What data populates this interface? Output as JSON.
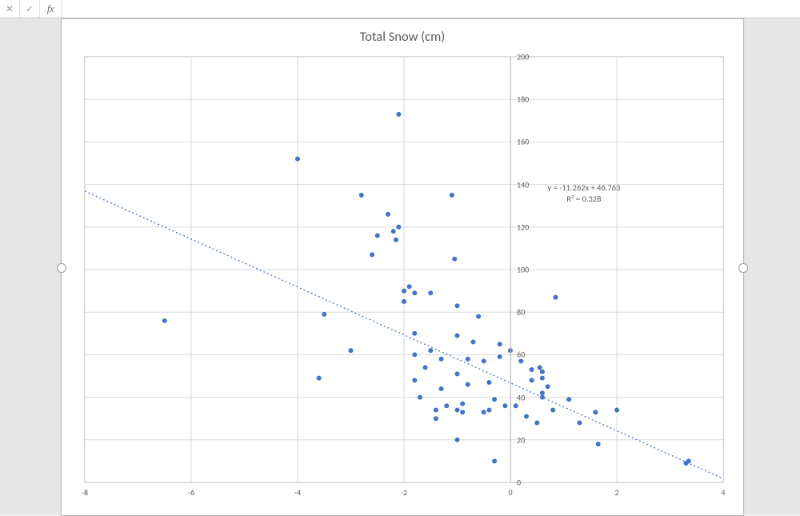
{
  "formula_bar": {
    "cancel_symbol": "✕",
    "confirm_symbol": "✓",
    "fx_symbol": "fx",
    "value": ""
  },
  "chart": {
    "type": "scatter",
    "title": "Total Snow (cm)",
    "title_fontsize": 16.5,
    "title_color": "#595959",
    "background_color": "#ffffff",
    "grid_color": "#d9d9d9",
    "axis_zero_color": "#bfbfbf",
    "label_fontsize": 10,
    "label_color": "#595959",
    "marker_color": "#4472c4",
    "marker_radius": 3.0,
    "x": {
      "min": -8,
      "max": 4,
      "tick_step": 2,
      "ticks": [
        -8,
        -6,
        -4,
        -2,
        0,
        2,
        4
      ]
    },
    "y": {
      "min": 0,
      "max": 200,
      "tick_step": 20,
      "ticks": [
        0,
        20,
        40,
        60,
        80,
        100,
        120,
        140,
        160,
        180,
        200
      ],
      "axis_at_x": 0
    },
    "trendline": {
      "type": "linear",
      "slope": -11.262,
      "intercept": 46.763,
      "r2": 0.328,
      "color": "#4472c4",
      "dash": "2 3",
      "width": 1.3,
      "equation_label": "y = -11.262x + 46.763",
      "r2_label": "R² = 0.328"
    },
    "points": [
      [
        -6.5,
        76
      ],
      [
        -4.0,
        152
      ],
      [
        -3.5,
        79
      ],
      [
        -3.6,
        49
      ],
      [
        -3.0,
        62
      ],
      [
        -2.8,
        135
      ],
      [
        -2.6,
        107
      ],
      [
        -2.5,
        116
      ],
      [
        -2.1,
        173
      ],
      [
        -2.3,
        126
      ],
      [
        -2.2,
        118
      ],
      [
        -2.15,
        114
      ],
      [
        -2.1,
        120
      ],
      [
        -2.0,
        90
      ],
      [
        -2.0,
        85
      ],
      [
        -1.9,
        92
      ],
      [
        -1.8,
        89
      ],
      [
        -1.8,
        70
      ],
      [
        -1.8,
        60
      ],
      [
        -1.8,
        48
      ],
      [
        -1.7,
        40
      ],
      [
        -1.6,
        54
      ],
      [
        -1.5,
        89
      ],
      [
        -1.5,
        62
      ],
      [
        -1.4,
        34
      ],
      [
        -1.4,
        30
      ],
      [
        -1.3,
        58
      ],
      [
        -1.3,
        44
      ],
      [
        -1.2,
        36
      ],
      [
        -1.1,
        135
      ],
      [
        -1.05,
        105
      ],
      [
        -1.0,
        83
      ],
      [
        -1.0,
        69
      ],
      [
        -1.0,
        51
      ],
      [
        -1.0,
        34
      ],
      [
        -1.0,
        20
      ],
      [
        -0.9,
        37
      ],
      [
        -0.9,
        33
      ],
      [
        -0.8,
        58
      ],
      [
        -0.8,
        46
      ],
      [
        -0.7,
        66
      ],
      [
        -0.6,
        78
      ],
      [
        -0.5,
        33
      ],
      [
        -0.5,
        57
      ],
      [
        -0.4,
        47
      ],
      [
        -0.4,
        34
      ],
      [
        -0.3,
        10
      ],
      [
        -0.3,
        39
      ],
      [
        -0.2,
        59
      ],
      [
        -0.2,
        65
      ],
      [
        -0.1,
        36
      ],
      [
        0.0,
        62
      ],
      [
        0.1,
        36
      ],
      [
        0.2,
        57
      ],
      [
        0.3,
        31
      ],
      [
        0.4,
        48
      ],
      [
        0.4,
        53
      ],
      [
        0.5,
        28
      ],
      [
        0.6,
        40
      ],
      [
        0.55,
        54
      ],
      [
        0.6,
        52
      ],
      [
        0.6,
        49
      ],
      [
        0.6,
        42
      ],
      [
        0.7,
        45
      ],
      [
        0.8,
        34
      ],
      [
        0.85,
        87
      ],
      [
        1.1,
        39
      ],
      [
        1.3,
        28
      ],
      [
        1.6,
        33
      ],
      [
        1.65,
        18
      ],
      [
        2.0,
        34
      ],
      [
        3.3,
        9
      ],
      [
        3.35,
        10
      ]
    ]
  }
}
